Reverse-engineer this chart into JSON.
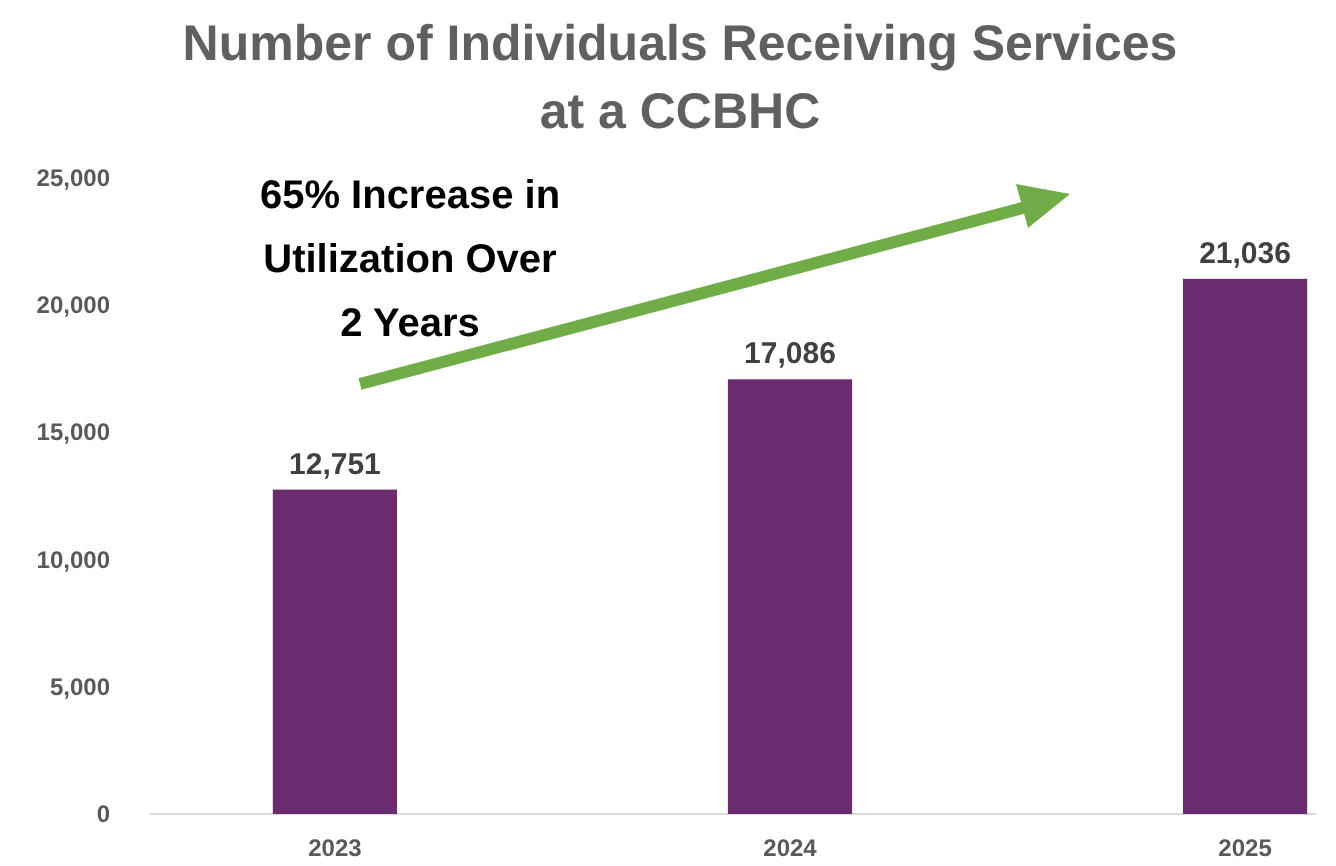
{
  "chart_data": {
    "type": "bar",
    "title": "Number of Individuals Receiving Services at a CCBHC",
    "categories": [
      "2023",
      "2024",
      "2025"
    ],
    "values": [
      12751,
      17086,
      21036
    ],
    "value_labels": [
      "12,751",
      "17,086",
      "21,036"
    ],
    "color": "#6b2c6f",
    "ylim": [
      0,
      25000
    ],
    "yticks": [
      {
        "value": 0,
        "label": "0"
      },
      {
        "value": 5000,
        "label": "5,000"
      },
      {
        "value": 10000,
        "label": "10,000"
      },
      {
        "value": 15000,
        "label": "15,000"
      },
      {
        "value": 20000,
        "label": "20,000"
      },
      {
        "value": 25000,
        "label": "25,000"
      }
    ],
    "annotations": [
      "65% Increase in Utilization Over 2 Years"
    ],
    "grid": false
  }
}
